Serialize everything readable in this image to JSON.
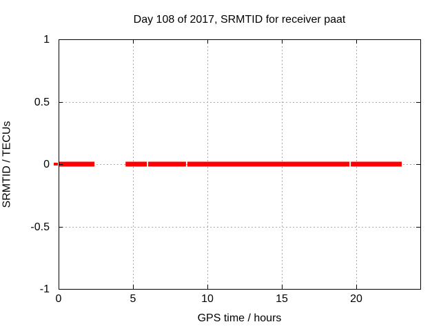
{
  "chart_data": {
    "type": "line",
    "title": "Day 108 of 2017, SRMTID for receiver paat",
    "xlabel": "GPS time / hours",
    "ylabel": "SRMTID / TECUs",
    "xlim": [
      0,
      24.3
    ],
    "ylim": [
      -1,
      1
    ],
    "grid": true,
    "legend": "none",
    "xticks": [
      {
        "v": 0,
        "label": "0"
      },
      {
        "v": 5,
        "label": "5"
      },
      {
        "v": 10,
        "label": "10"
      },
      {
        "v": 15,
        "label": "15"
      },
      {
        "v": 20,
        "label": "20"
      }
    ],
    "yticks": [
      {
        "v": -1,
        "label": "-1"
      },
      {
        "v": -0.5,
        "label": "-0.5"
      },
      {
        "v": 0,
        "label": "0"
      },
      {
        "v": 0.5,
        "label": "0.5"
      },
      {
        "v": 1,
        "label": "1"
      }
    ],
    "series": [
      {
        "name": "SRMTID",
        "style": "horizontal-segments",
        "color": "#ff0000",
        "y_value": 0,
        "segments_x_hours": [
          [
            0,
            2.41
          ],
          [
            4.5,
            5.93
          ],
          [
            6.02,
            8.56
          ],
          [
            8.65,
            19.54
          ],
          [
            19.63,
            23.05
          ]
        ]
      }
    ],
    "artifacts": {
      "outer_red_dash_at_y0": true
    }
  },
  "colors": {
    "background": "#ffffff",
    "axis": "#000000",
    "grid": "#a8a8a8",
    "series_red": "#ff0000",
    "text": "#000000"
  }
}
